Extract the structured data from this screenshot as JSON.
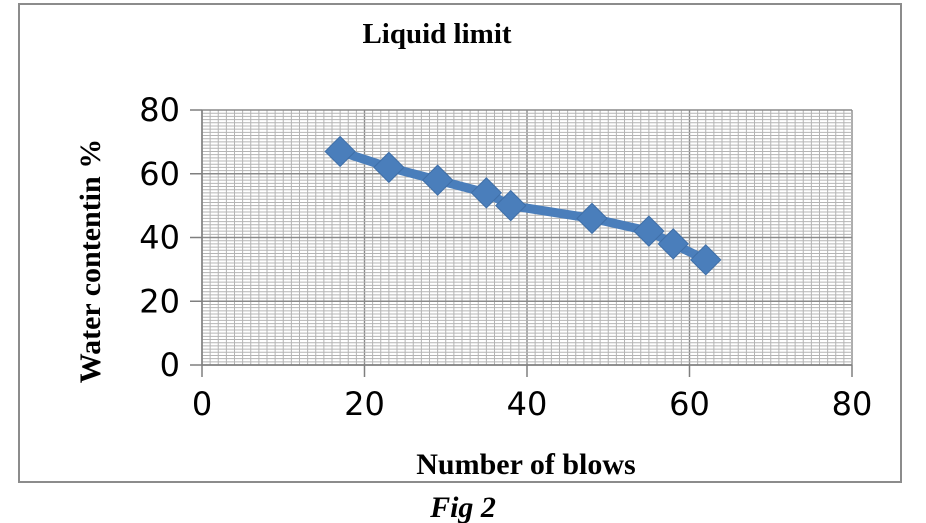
{
  "caption": "Fig 2",
  "chart_data": {
    "type": "line",
    "title": "Liquid limit",
    "xlabel": "Number of blows",
    "ylabel": "Water contentin %",
    "xlim": [
      0,
      80
    ],
    "ylim": [
      0,
      80
    ],
    "xticks": [
      0,
      20,
      40,
      60,
      80
    ],
    "yticks": [
      0,
      20,
      40,
      60,
      80
    ],
    "grid": "on",
    "legend": "none",
    "series_color": "#4a7ebb",
    "series": [
      {
        "x": [
          17,
          23,
          29,
          35,
          38,
          48,
          55,
          58,
          62
        ],
        "y": [
          67,
          62,
          58,
          54,
          50,
          46,
          42,
          38,
          33
        ]
      }
    ]
  }
}
